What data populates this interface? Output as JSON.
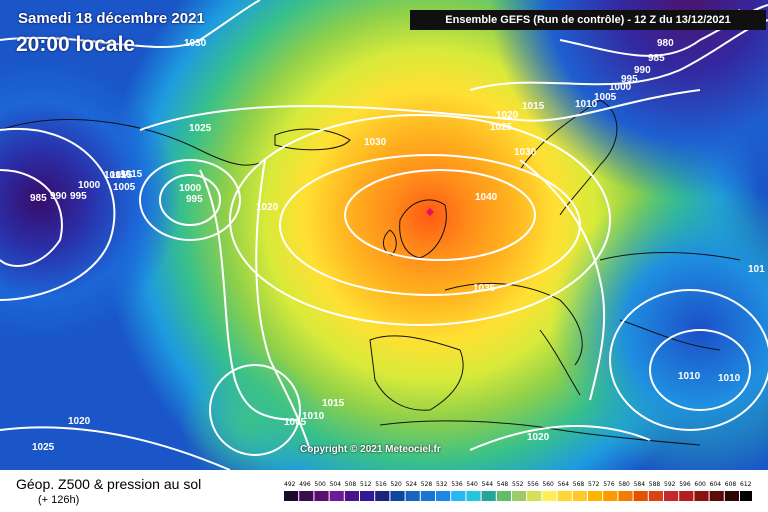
{
  "header": {
    "date": "Samedi 18 décembre 2021",
    "local_time": "20:00 locale",
    "run_info": "Ensemble GEFS  (Run de contrôle)  -  12 Z du 13/12/2021"
  },
  "copyright": "Copyright © 2021 Meteociel.fr",
  "footer": {
    "title": "Géop. Z500 & pression au sol",
    "lead_time": "(+ 126h)"
  },
  "legend": {
    "unit_values": [
      492,
      496,
      500,
      504,
      508,
      512,
      516,
      520,
      524,
      528,
      532,
      536,
      540,
      544,
      548,
      552,
      556,
      560,
      564,
      568,
      572,
      576,
      580,
      584,
      588,
      592,
      596,
      600,
      604,
      608,
      612
    ],
    "colors": [
      "#1a0a2e",
      "#3a0b4f",
      "#5a0e70",
      "#6a1b9a",
      "#4a148c",
      "#311b92",
      "#1a237e",
      "#0d47a1",
      "#1565c0",
      "#1976d2",
      "#1e88e5",
      "#29b6f6",
      "#26c6da",
      "#26a69a",
      "#66bb6a",
      "#9ccc65",
      "#d4e157",
      "#ffee58",
      "#fdd835",
      "#ffca28",
      "#ffb300",
      "#ff9800",
      "#f57c00",
      "#e65100",
      "#d84315",
      "#c62828",
      "#b71c1c",
      "#8e1010",
      "#5d0b0b",
      "#2e0505",
      "#000000"
    ]
  },
  "isobar_labels": [
    "1030",
    "1025",
    "1015",
    "1015",
    "1000",
    "1005",
    "985",
    "990",
    "995",
    "1000",
    "995",
    "1020",
    "1030",
    "1025",
    "1020",
    "1015",
    "1010",
    "1005",
    "1000",
    "995",
    "990",
    "985",
    "980",
    "1040",
    "1030",
    "1035",
    "1015",
    "1010",
    "1010",
    "1005",
    "1010",
    "1015",
    "1020",
    "1025",
    "1020",
    "101"
  ]
}
